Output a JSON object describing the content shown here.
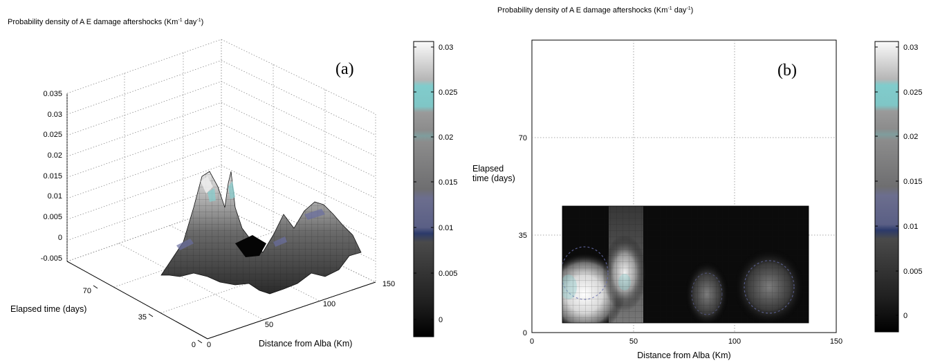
{
  "panel_a": {
    "title": "Probability density of A E damage aftershocks (Km",
    "title_sup1": "-1",
    "title_mid": " day",
    "title_sup2": "-1",
    "title_end": ")",
    "tag": "(a)",
    "z_ticks": [
      "0.035",
      "0.03",
      "0.025",
      "0.02",
      "0.015",
      "0.01",
      "0.005",
      "0",
      "-0.005"
    ],
    "time_ticks": [
      "70",
      "35",
      "0"
    ],
    "dist_ticks": [
      "0",
      "50",
      "100",
      "150"
    ],
    "time_label": "Elapsed time (days)",
    "dist_label": "Distance from Alba (Km)",
    "colorbar_ticks": [
      "0.03",
      "0.025",
      "0.02",
      "0.015",
      "0.01",
      "0.005",
      "0"
    ]
  },
  "panel_b": {
    "title": "Probability density of A E damage aftershocks (Km",
    "title_sup1": "-1",
    "title_mid": " day",
    "title_sup2": "-1",
    "title_end": ")",
    "tag": "(b)",
    "y_ticks": [
      "70",
      "35",
      "0"
    ],
    "x_ticks": [
      "0",
      "50",
      "100",
      "150"
    ],
    "y_label_line1": "Elapsed",
    "y_label_line2": "time (days)",
    "x_label": "Distance from Alba (Km)",
    "colorbar_ticks": [
      "0.03",
      "0.025",
      "0.02",
      "0.015",
      "0.01",
      "0.005",
      "0"
    ]
  },
  "chart_data": [
    {
      "type": "surface",
      "title": "Probability density of A E damage aftershocks (Km-1 day-1)",
      "xlabel": "Distance from Alba (Km)",
      "ylabel": "Elapsed time (days)",
      "zlim": [
        -0.005,
        0.035
      ],
      "xlim": [
        0,
        150
      ],
      "ylim": [
        0,
        105
      ],
      "colormap": "gray",
      "colorbar_range": [
        -0.002,
        0.031
      ],
      "peaks": [
        {
          "distance": 25,
          "time": 14,
          "density": 0.03
        },
        {
          "distance": 45,
          "time": 22,
          "density": 0.024
        },
        {
          "distance": 85,
          "time": 12,
          "density": 0.011
        },
        {
          "distance": 115,
          "time": 12,
          "density": 0.013
        }
      ]
    },
    {
      "type": "heatmap",
      "title": "Probability density of A E damage aftershocks (Km-1 day-1)",
      "xlabel": "Distance from Alba (Km)",
      "ylabel": "Elapsed time (days)",
      "xlim": [
        0,
        150
      ],
      "ylim": [
        0,
        105
      ],
      "data_extent": {
        "x": [
          15,
          135
        ],
        "y": [
          5,
          45
        ]
      },
      "colormap": "gray",
      "colorbar_range": [
        -0.002,
        0.031
      ],
      "peaks": [
        {
          "distance": 25,
          "time": 14,
          "density": 0.03
        },
        {
          "distance": 45,
          "time": 22,
          "density": 0.024
        },
        {
          "distance": 85,
          "time": 12,
          "density": 0.011
        },
        {
          "distance": 115,
          "time": 12,
          "density": 0.013
        }
      ]
    }
  ]
}
